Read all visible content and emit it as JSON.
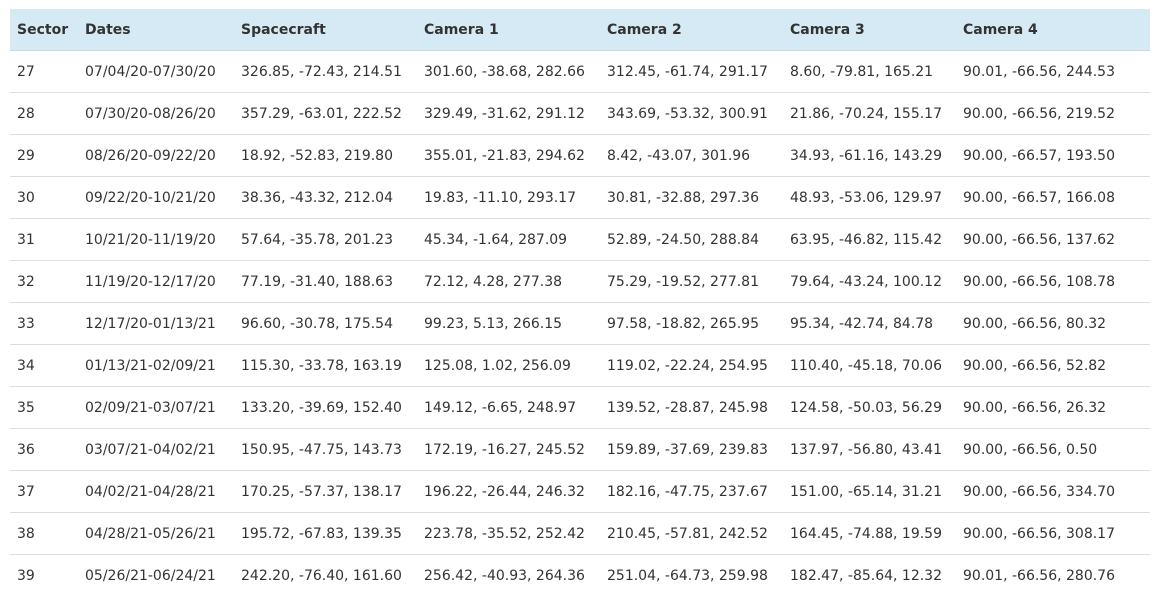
{
  "table": {
    "headers": [
      "Sector",
      "Dates",
      "Spacecraft",
      "Camera 1",
      "Camera 2",
      "Camera 3",
      "Camera 4"
    ],
    "rows": [
      [
        "27",
        "07/04/20-07/30/20",
        "326.85, -72.43, 214.51",
        "301.60, -38.68, 282.66",
        "312.45, -61.74, 291.17",
        "8.60, -79.81, 165.21",
        "90.01, -66.56, 244.53"
      ],
      [
        "28",
        "07/30/20-08/26/20",
        "357.29, -63.01, 222.52",
        "329.49, -31.62, 291.12",
        "343.69, -53.32, 300.91",
        "21.86, -70.24, 155.17",
        "90.00, -66.56, 219.52"
      ],
      [
        "29",
        "08/26/20-09/22/20",
        "18.92, -52.83, 219.80",
        "355.01, -21.83, 294.62",
        "8.42, -43.07, 301.96",
        "34.93, -61.16, 143.29",
        "90.00, -66.57, 193.50"
      ],
      [
        "30",
        "09/22/20-10/21/20",
        "38.36, -43.32, 212.04",
        "19.83, -11.10, 293.17",
        "30.81, -32.88, 297.36",
        "48.93, -53.06, 129.97",
        "90.00, -66.57, 166.08"
      ],
      [
        "31",
        "10/21/20-11/19/20",
        "57.64, -35.78, 201.23",
        "45.34, -1.64, 287.09",
        "52.89, -24.50, 288.84",
        "63.95, -46.82, 115.42",
        "90.00, -66.56, 137.62"
      ],
      [
        "32",
        "11/19/20-12/17/20",
        "77.19, -31.40, 188.63",
        "72.12, 4.28, 277.38",
        "75.29, -19.52, 277.81",
        "79.64, -43.24, 100.12",
        "90.00, -66.56, 108.78"
      ],
      [
        "33",
        "12/17/20-01/13/21",
        "96.60, -30.78, 175.54",
        "99.23, 5.13, 266.15",
        "97.58, -18.82, 265.95",
        "95.34, -42.74, 84.78",
        "90.00, -66.56, 80.32"
      ],
      [
        "34",
        "01/13/21-02/09/21",
        "115.30, -33.78, 163.19",
        "125.08, 1.02, 256.09",
        "119.02, -22.24, 254.95",
        "110.40, -45.18, 70.06",
        "90.00, -66.56, 52.82"
      ],
      [
        "35",
        "02/09/21-03/07/21",
        "133.20, -39.69, 152.40",
        "149.12, -6.65, 248.97",
        "139.52, -28.87, 245.98",
        "124.58, -50.03, 56.29",
        "90.00, -66.56, 26.32"
      ],
      [
        "36",
        "03/07/21-04/02/21",
        "150.95, -47.75, 143.73",
        "172.19, -16.27, 245.52",
        "159.89, -37.69, 239.83",
        "137.97, -56.80, 43.41",
        "90.00, -66.56, 0.50"
      ],
      [
        "37",
        "04/02/21-04/28/21",
        "170.25, -57.37, 138.17",
        "196.22, -26.44, 246.32",
        "182.16, -47.75, 237.67",
        "151.00, -65.14, 31.21",
        "90.00, -66.56, 334.70"
      ],
      [
        "38",
        "04/28/21-05/26/21",
        "195.72, -67.83, 139.35",
        "223.78, -35.52, 252.42",
        "210.45, -57.81, 242.52",
        "164.45, -74.88, 19.59",
        "90.00, -66.56, 308.17"
      ],
      [
        "39",
        "05/26/21-06/24/21",
        "242.20, -76.40, 161.60",
        "256.42, -40.93, 264.36",
        "251.04, -64.73, 259.98",
        "182.47, -85.64, 12.32",
        "90.01, -66.56, 280.76"
      ]
    ]
  },
  "colors": {
    "header_background": "#d6eaf5",
    "text": "#333333",
    "row_divider": "#dddddd"
  }
}
